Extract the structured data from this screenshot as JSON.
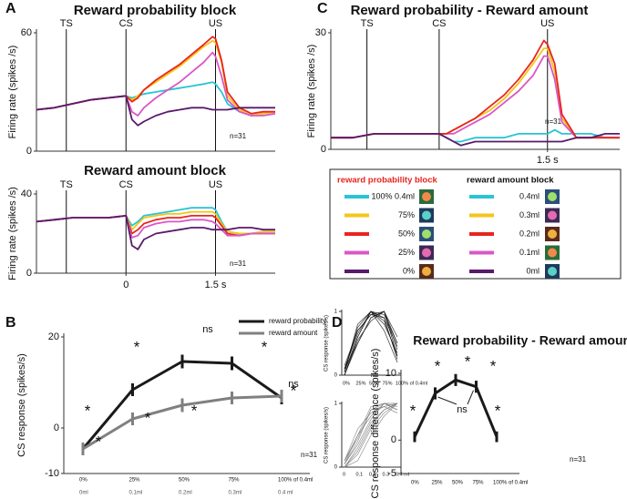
{
  "panel_labels": [
    "A",
    "B",
    "C",
    "D"
  ],
  "chart_data": [
    {
      "type": "line",
      "title": "Reward probability block",
      "ylabel": "Firing rate (spikes /s)",
      "legend_title": "reward probability block",
      "annotation": "n=31",
      "x": [
        -1.5,
        -1.2,
        -0.9,
        -0.6,
        -0.3,
        0,
        0.1,
        0.2,
        0.3,
        0.5,
        0.7,
        0.9,
        1.1,
        1.3,
        1.45,
        1.5,
        1.6,
        1.7,
        1.9,
        2.1,
        2.3,
        2.5
      ],
      "xlim": [
        -1.5,
        2.5
      ],
      "ylim": [
        0,
        60
      ],
      "yticks": [
        0,
        60
      ],
      "events": [
        {
          "label": "TS",
          "x": -1
        },
        {
          "label": "CS",
          "x": 0
        },
        {
          "label": "US",
          "x": 1.5
        }
      ],
      "series": [
        {
          "name": "100% 0.4ml",
          "color": "#29c4d6",
          "values": [
            21,
            22,
            24,
            26,
            27,
            28,
            27,
            28,
            29,
            30,
            31,
            32,
            33,
            34,
            35,
            34,
            30,
            24,
            20,
            18,
            19,
            20
          ]
        },
        {
          "name": "75%",
          "color": "#f5c518",
          "values": [
            21,
            22,
            24,
            26,
            27,
            28,
            26,
            28,
            31,
            35,
            39,
            43,
            48,
            53,
            56,
            55,
            45,
            28,
            21,
            18,
            19,
            20
          ]
        },
        {
          "name": "50%",
          "color": "#e8251e",
          "values": [
            21,
            22,
            24,
            26,
            27,
            28,
            25,
            27,
            31,
            36,
            40,
            44,
            49,
            54,
            58,
            57,
            46,
            30,
            22,
            19,
            20,
            20
          ]
        },
        {
          "name": "25%",
          "color": "#d957c6",
          "values": [
            21,
            22,
            24,
            26,
            27,
            28,
            20,
            18,
            22,
            27,
            31,
            35,
            40,
            45,
            50,
            48,
            38,
            26,
            20,
            18,
            18,
            19
          ]
        },
        {
          "name": "0%",
          "color": "#5a1a6b",
          "values": [
            21,
            22,
            24,
            26,
            27,
            28,
            16,
            13,
            15,
            18,
            20,
            21,
            22,
            22,
            21,
            21,
            21,
            21,
            22,
            22,
            22,
            22
          ]
        }
      ]
    },
    {
      "type": "line",
      "title": "Reward amount block",
      "ylabel": "Firing rate (spikes /s)",
      "legend_title": "reward amount block",
      "annotation": "n=31",
      "x": [
        -1.5,
        -1.2,
        -0.9,
        -0.6,
        -0.3,
        0,
        0.1,
        0.2,
        0.3,
        0.5,
        0.7,
        0.9,
        1.1,
        1.3,
        1.45,
        1.5,
        1.6,
        1.7,
        1.9,
        2.1,
        2.3,
        2.5
      ],
      "xlim": [
        -1.5,
        2.5
      ],
      "ylim": [
        0,
        40
      ],
      "yticks": [
        0,
        40
      ],
      "xticks": [
        0,
        {
          "value": 1.5,
          "label": "1.5 s"
        }
      ],
      "events": [
        {
          "label": "TS",
          "x": -1
        },
        {
          "label": "CS",
          "x": 0
        },
        {
          "label": "US",
          "x": 1.5
        }
      ],
      "series": [
        {
          "name": "0.4ml",
          "color": "#29c4d6",
          "values": [
            26,
            27,
            28,
            28,
            28,
            29,
            24,
            26,
            29,
            30,
            31,
            32,
            33,
            33,
            33,
            32,
            26,
            21,
            20,
            20,
            21,
            21
          ]
        },
        {
          "name": "0.3ml",
          "color": "#f5c518",
          "values": [
            26,
            27,
            28,
            28,
            28,
            29,
            22,
            25,
            28,
            29,
            30,
            30,
            31,
            31,
            31,
            30,
            25,
            21,
            20,
            20,
            21,
            21
          ]
        },
        {
          "name": "0.2ml",
          "color": "#e8251e",
          "values": [
            26,
            27,
            28,
            28,
            28,
            29,
            20,
            22,
            25,
            27,
            28,
            28,
            29,
            29,
            29,
            28,
            24,
            20,
            19,
            20,
            20,
            20
          ]
        },
        {
          "name": "0.1ml",
          "color": "#d957c6",
          "values": [
            26,
            27,
            28,
            28,
            28,
            29,
            18,
            19,
            23,
            25,
            26,
            26,
            27,
            27,
            26,
            25,
            22,
            19,
            19,
            20,
            20,
            20
          ]
        },
        {
          "name": "0ml",
          "color": "#5a1a6b",
          "values": [
            26,
            27,
            28,
            28,
            28,
            29,
            14,
            12,
            17,
            20,
            21,
            22,
            23,
            23,
            22,
            22,
            22,
            22,
            23,
            23,
            22,
            22
          ]
        }
      ]
    },
    {
      "type": "line",
      "title": "Reward probability - Reward amount",
      "ylabel": "Firing rate (spikes /s)",
      "annotation": "n=31",
      "x": [
        -1.5,
        -1.2,
        -0.9,
        -0.6,
        -0.3,
        0,
        0.1,
        0.2,
        0.3,
        0.5,
        0.7,
        0.9,
        1.1,
        1.3,
        1.45,
        1.5,
        1.6,
        1.7,
        1.9,
        2.1,
        2.3,
        2.5
      ],
      "xlim": [
        -1.5,
        2.5
      ],
      "ylim": [
        0,
        30
      ],
      "yticks": [
        0,
        30
      ],
      "xticks": [
        {
          "value": 1.5,
          "label": "1.5 s"
        }
      ],
      "events": [
        {
          "label": "TS",
          "x": -1
        },
        {
          "label": "CS",
          "x": 0
        },
        {
          "label": "US",
          "x": 1.5
        }
      ],
      "series": [
        {
          "color": "#29c4d6",
          "values": [
            3,
            3,
            4,
            4,
            4,
            4,
            3,
            2,
            2,
            3,
            3,
            3,
            4,
            4,
            4,
            4,
            5,
            4,
            4,
            4,
            3,
            3
          ]
        },
        {
          "color": "#f5c518",
          "values": [
            3,
            3,
            4,
            4,
            4,
            4,
            4,
            5,
            6,
            8,
            10,
            13,
            17,
            22,
            26,
            26,
            20,
            8,
            3,
            3,
            3,
            3
          ]
        },
        {
          "color": "#d957c6",
          "values": [
            3,
            3,
            4,
            4,
            4,
            4,
            4,
            4,
            5,
            7,
            9,
            12,
            15,
            19,
            24,
            24,
            18,
            7,
            3,
            3,
            3,
            3
          ]
        },
        {
          "color": "#e8251e",
          "values": [
            3,
            3,
            4,
            4,
            4,
            4,
            4,
            5,
            6,
            8,
            11,
            14,
            18,
            23,
            28,
            27,
            22,
            9,
            3,
            3,
            3,
            3
          ]
        },
        {
          "color": "#5a1a6b",
          "values": [
            3,
            3,
            4,
            4,
            4,
            4,
            3,
            2,
            1,
            2,
            2,
            2,
            2,
            2,
            2,
            2,
            2,
            2,
            3,
            3,
            4,
            4
          ]
        }
      ]
    },
    {
      "type": "errorline",
      "ylabel": "CS response (spikes/s)",
      "annotation": "n=31",
      "categories": [
        "0%",
        "25%",
        "50%",
        "75%",
        "100% of 0.4ml"
      ],
      "secondary_categories": [
        "0ml",
        "0.1ml",
        "0.2ml",
        "0.3ml",
        "0.4 ml"
      ],
      "ylim": [
        -10,
        20
      ],
      "yticks": [
        -10,
        0,
        20
      ],
      "annotations": [
        "*",
        "*",
        "*",
        "*",
        "ns",
        "*",
        "*",
        "*",
        "ns"
      ],
      "series": [
        {
          "name": "reward probability",
          "color": "#1a1a1a",
          "values": [
            -4.6,
            8.4,
            14.6,
            14.2,
            6.6
          ],
          "errors": [
            1.4,
            1.4,
            1.5,
            1.5,
            1.4
          ]
        },
        {
          "name": "reward amount",
          "color": "#808080",
          "values": [
            -4.6,
            2,
            5,
            6.6,
            7
          ],
          "errors": [
            1.4,
            1.4,
            1.5,
            1.4,
            1.4
          ]
        }
      ]
    },
    {
      "type": "multiline",
      "ylabel": "CS response (spikes/s)",
      "categories": [
        "0%",
        "25%",
        "50%",
        "75%",
        "100% of 0.4ml"
      ],
      "ylim": [
        0,
        1
      ],
      "yticks": [
        0,
        1
      ],
      "series": [
        {
          "color": "#111111",
          "values": [
            0.05,
            0.6,
            1,
            0.85,
            0.3
          ]
        },
        {
          "color": "#111111",
          "values": [
            0.1,
            0.7,
            0.95,
            1,
            0.4
          ]
        },
        {
          "color": "#111111",
          "values": [
            0,
            0.5,
            0.9,
            1,
            0.5
          ]
        },
        {
          "color": "#111111",
          "values": [
            0.05,
            0.8,
            1,
            0.7,
            0.2
          ]
        },
        {
          "color": "#111111",
          "values": [
            0.1,
            0.65,
            1,
            0.9,
            0.45
          ]
        },
        {
          "color": "#111111",
          "values": [
            0,
            0.55,
            0.85,
            1,
            0.6
          ]
        },
        {
          "color": "#111111",
          "values": [
            0.05,
            0.75,
            1,
            0.8,
            0.35
          ]
        },
        {
          "color": "#111111",
          "values": [
            0.15,
            0.7,
            0.95,
            0.9,
            0.25
          ]
        },
        {
          "color": "#111111",
          "values": [
            0,
            0.6,
            1,
            0.95,
            0.5
          ]
        },
        {
          "color": "#111111",
          "values": [
            0.1,
            0.5,
            0.9,
            1,
            0.3
          ]
        }
      ]
    },
    {
      "type": "multiline",
      "ylabel": "CS response (spikes/s)",
      "categories": [
        "0",
        "0.1",
        "0.2",
        "0.3",
        "0.4 ml"
      ],
      "ylim": [
        0,
        1
      ],
      "yticks": [
        0,
        1
      ],
      "series": [
        {
          "color": "#808080",
          "values": [
            0,
            0.3,
            0.7,
            0.9,
            1
          ]
        },
        {
          "color": "#808080",
          "values": [
            0.1,
            0.5,
            0.8,
            1,
            0.95
          ]
        },
        {
          "color": "#808080",
          "values": [
            0,
            0.2,
            0.6,
            0.85,
            1
          ]
        },
        {
          "color": "#808080",
          "values": [
            0.05,
            0.4,
            0.9,
            1,
            0.9
          ]
        },
        {
          "color": "#808080",
          "values": [
            0.1,
            0.6,
            0.85,
            0.95,
            1
          ]
        },
        {
          "color": "#808080",
          "values": [
            0,
            0.1,
            0.5,
            0.8,
            1
          ]
        },
        {
          "color": "#808080",
          "values": [
            0.05,
            0.35,
            0.75,
            1,
            1
          ]
        },
        {
          "color": "#808080",
          "values": [
            0.1,
            0.45,
            0.9,
            0.95,
            0.85
          ]
        },
        {
          "color": "#808080",
          "values": [
            0,
            0.25,
            0.65,
            0.9,
            1
          ]
        },
        {
          "color": "#808080",
          "values": [
            0.05,
            0.5,
            0.95,
            1,
            0.9
          ]
        }
      ]
    },
    {
      "type": "errorline",
      "title": "Reward probability - Reward amount",
      "ylabel": "CS response difference (spikes/s)",
      "annotation": "n=31",
      "categories": [
        "0%",
        "25%",
        "50%",
        "75%",
        "100% of 0.4ml"
      ],
      "ylim": [
        -5,
        10
      ],
      "yticks": [
        -5,
        0,
        10
      ],
      "annotations": [
        "*",
        "*",
        "*",
        "*",
        "*",
        "ns"
      ],
      "series": [
        {
          "color": "#1a1a1a",
          "values": [
            0.5,
            7,
            9,
            8,
            0.5
          ],
          "errors": [
            0.8,
            0.9,
            0.9,
            0.9,
            0.8
          ]
        }
      ]
    }
  ]
}
